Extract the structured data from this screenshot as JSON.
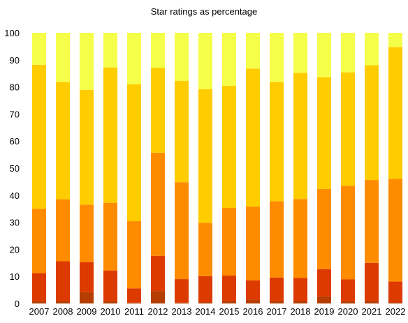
{
  "chart_data": {
    "type": "bar",
    "stacked": true,
    "title": "Star ratings as percentage",
    "xlabel": "",
    "ylabel": "",
    "ylim": [
      0,
      100
    ],
    "yticks": [
      0,
      10,
      20,
      30,
      40,
      50,
      60,
      70,
      80,
      90,
      100
    ],
    "grid": false,
    "categories": [
      "2007",
      "2008",
      "2009",
      "2010",
      "2011",
      "2012",
      "2013",
      "2014",
      "2015",
      "2016",
      "2017",
      "2018",
      "2019",
      "2020",
      "2021",
      "2022"
    ],
    "series": [
      {
        "color": "#b53d00",
        "values": [
          0.8,
          1.0,
          4.2,
          0.8,
          0.3,
          4.6,
          0.3,
          0.5,
          1.0,
          1.4,
          1.0,
          0.9,
          2.6,
          0.8,
          1.0,
          0.4
        ]
      },
      {
        "color": "#dd3a00",
        "values": [
          10.4,
          14.6,
          11.1,
          11.4,
          5.3,
          13.0,
          8.7,
          9.6,
          9.3,
          7.1,
          8.6,
          8.5,
          10.1,
          8.1,
          14.0,
          7.7
        ]
      },
      {
        "color": "#ff8c00",
        "values": [
          23.8,
          22.9,
          21.2,
          25.0,
          24.8,
          38.1,
          35.8,
          19.7,
          25.0,
          27.3,
          28.2,
          29.2,
          29.6,
          34.6,
          30.6,
          37.9
        ]
      },
      {
        "color": "#ffcc00",
        "values": [
          53.2,
          43.3,
          42.4,
          50.0,
          50.6,
          31.4,
          37.5,
          49.4,
          45.1,
          51.0,
          44.0,
          46.6,
          41.3,
          41.9,
          42.4,
          48.7
        ]
      },
      {
        "color": "#f5ff4a",
        "values": [
          11.8,
          18.2,
          21.1,
          12.8,
          19.0,
          12.9,
          17.7,
          20.8,
          19.6,
          13.2,
          18.2,
          14.8,
          16.4,
          14.6,
          12.0,
          5.3
        ]
      }
    ]
  }
}
